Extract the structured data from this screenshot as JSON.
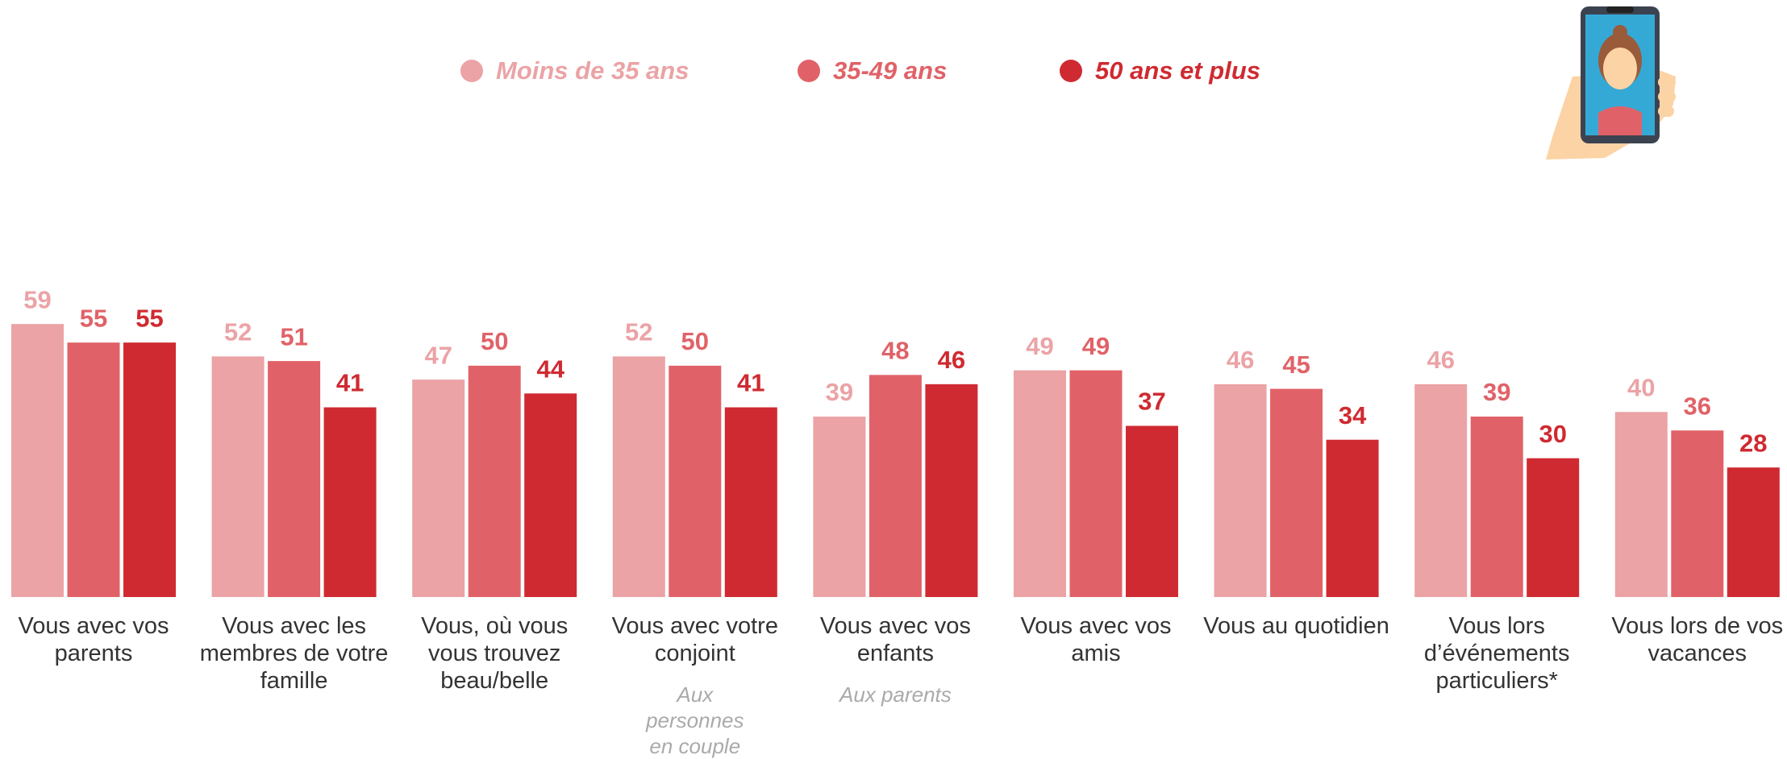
{
  "chart_data": {
    "type": "bar",
    "categories": [
      "Vous avec vos parents",
      "Vous avec les membres de votre famille",
      "Vous, où vous vous trouvez beau/belle",
      "Vous avec votre conjoint",
      "Vous avec vos enfants",
      "Vous avec vos amis",
      "Vous au quotidien",
      "Vous lors d’événements particuliers*",
      "Vous lors de vos vacances"
    ],
    "category_notes": [
      null,
      null,
      null,
      "Aux personnes en couple",
      "Aux parents",
      null,
      null,
      null,
      null
    ],
    "series": [
      {
        "name": "Moins de 35 ans",
        "color": "#eba3a6",
        "values": [
          59,
          52,
          47,
          52,
          39,
          49,
          46,
          46,
          40
        ]
      },
      {
        "name": "35-49 ans",
        "color": "#e06268",
        "values": [
          55,
          51,
          50,
          50,
          48,
          49,
          45,
          39,
          36
        ]
      },
      {
        "name": "50 ans et plus",
        "color": "#cf2a31",
        "values": [
          55,
          41,
          44,
          41,
          46,
          37,
          34,
          30,
          28
        ]
      }
    ],
    "ylim": [
      0,
      70
    ],
    "legend": "top"
  }
}
